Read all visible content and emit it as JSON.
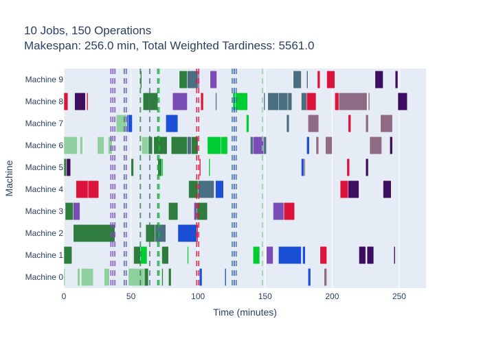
{
  "chart_data": {
    "type": "gantt",
    "title": "10 Jobs, 150 Operations",
    "subtitle": "Makespan: 256.0 min, Total Weighted Tardiness: 5561.0",
    "xlabel": "Time (minutes)",
    "ylabel": "Machine",
    "xlim": [
      0,
      270
    ],
    "xticks": [
      "0",
      "50",
      "100",
      "150",
      "200",
      "250"
    ],
    "xtick_values": [
      0,
      50,
      100,
      150,
      200,
      250
    ],
    "categories": [
      "Machine 0",
      "Machine 1",
      "Machine 2",
      "Machine 3",
      "Machine 4",
      "Machine 5",
      "Machine 6",
      "Machine 7",
      "Machine 8",
      "Machine 9"
    ],
    "grid": true,
    "colors": {
      "plot_bg": "#e5ecf6",
      "job_dark_green": "#2e7d3e",
      "job_light_green": "#8fd19e",
      "job_bright_green": "#00cc33",
      "job_blue": "#1a4fd6",
      "job_slate": "#4a6f82",
      "job_purple": "#7a4cb5",
      "job_dark_purple": "#3d0e5f",
      "job_red": "#dc143c",
      "job_mauve": "#8e6a85"
    },
    "tasks": [
      {
        "machine": 0,
        "start": 0,
        "end": 1,
        "color": "#8fd19e"
      },
      {
        "machine": 0,
        "start": 10,
        "end": 12,
        "color": "#8fd19e"
      },
      {
        "machine": 0,
        "start": 13,
        "end": 22,
        "color": "#8fd19e"
      },
      {
        "machine": 0,
        "start": 30,
        "end": 34,
        "color": "#8fd19e"
      },
      {
        "machine": 0,
        "start": 48,
        "end": 60,
        "color": "#8fd19e"
      },
      {
        "machine": 0,
        "start": 60,
        "end": 63,
        "color": "#2e7d3e"
      },
      {
        "machine": 0,
        "start": 73,
        "end": 74,
        "color": "#2e7d3e"
      },
      {
        "machine": 0,
        "start": 78,
        "end": 80,
        "color": "#2e7d3e"
      },
      {
        "machine": 0,
        "start": 101,
        "end": 103,
        "color": "#1a4fd6"
      },
      {
        "machine": 0,
        "start": 120,
        "end": 121,
        "color": "#1a4fd6"
      },
      {
        "machine": 0,
        "start": 182,
        "end": 184,
        "color": "#1a4fd6"
      },
      {
        "machine": 0,
        "start": 194,
        "end": 196,
        "color": "#8e6a85"
      },
      {
        "machine": 1,
        "start": 0,
        "end": 6,
        "color": "#2e7d3e"
      },
      {
        "machine": 1,
        "start": 52,
        "end": 57,
        "color": "#2e7d3e"
      },
      {
        "machine": 1,
        "start": 57,
        "end": 62,
        "color": "#00cc33"
      },
      {
        "machine": 1,
        "start": 73,
        "end": 78,
        "color": "#2e7d3e"
      },
      {
        "machine": 1,
        "start": 92,
        "end": 93,
        "color": "#00cc33"
      },
      {
        "machine": 1,
        "start": 141,
        "end": 146,
        "color": "#00cc33"
      },
      {
        "machine": 1,
        "start": 151,
        "end": 156,
        "color": "#7a4cb5"
      },
      {
        "machine": 1,
        "start": 160,
        "end": 177,
        "color": "#1a4fd6"
      },
      {
        "machine": 1,
        "start": 178,
        "end": 180,
        "color": "#1a4fd6"
      },
      {
        "machine": 1,
        "start": 191,
        "end": 196,
        "color": "#dc143c"
      },
      {
        "machine": 1,
        "start": 220,
        "end": 225,
        "color": "#3d0e5f"
      },
      {
        "machine": 1,
        "start": 226,
        "end": 231,
        "color": "#3d0e5f"
      },
      {
        "machine": 1,
        "start": 246,
        "end": 247,
        "color": "#3d0e5f"
      },
      {
        "machine": 2,
        "start": 7,
        "end": 38,
        "color": "#2e7d3e"
      },
      {
        "machine": 2,
        "start": 61,
        "end": 68,
        "color": "#2e7d3e"
      },
      {
        "machine": 2,
        "start": 68,
        "end": 76,
        "color": "#4a6f82"
      },
      {
        "machine": 2,
        "start": 85,
        "end": 99,
        "color": "#1a4fd6"
      },
      {
        "machine": 2,
        "start": 99,
        "end": 100,
        "color": "#dc143c"
      },
      {
        "machine": 3,
        "start": 1,
        "end": 7,
        "color": "#2e7d3e"
      },
      {
        "machine": 3,
        "start": 7,
        "end": 12,
        "color": "#7a4cb5"
      },
      {
        "machine": 3,
        "start": 78,
        "end": 85,
        "color": "#2e7d3e"
      },
      {
        "machine": 3,
        "start": 97,
        "end": 99,
        "color": "#7a4cb5"
      },
      {
        "machine": 3,
        "start": 99,
        "end": 107,
        "color": "#2e7d3e"
      },
      {
        "machine": 3,
        "start": 156,
        "end": 164,
        "color": "#7a4cb5"
      },
      {
        "machine": 3,
        "start": 164,
        "end": 172,
        "color": "#dc143c"
      },
      {
        "machine": 4,
        "start": 9,
        "end": 18,
        "color": "#dc143c"
      },
      {
        "machine": 4,
        "start": 18,
        "end": 26,
        "color": "#dc143c"
      },
      {
        "machine": 4,
        "start": 93,
        "end": 100,
        "color": "#2e7d3e"
      },
      {
        "machine": 4,
        "start": 100,
        "end": 112,
        "color": "#4a6f82"
      },
      {
        "machine": 4,
        "start": 113,
        "end": 119,
        "color": "#1a4fd6"
      },
      {
        "machine": 4,
        "start": 206,
        "end": 212,
        "color": "#dc143c"
      },
      {
        "machine": 4,
        "start": 212,
        "end": 220,
        "color": "#3d0e5f"
      },
      {
        "machine": 4,
        "start": 238,
        "end": 244,
        "color": "#3d0e5f"
      },
      {
        "machine": 5,
        "start": 0,
        "end": 2,
        "color": "#2e7d3e"
      },
      {
        "machine": 5,
        "start": 2,
        "end": 5,
        "color": "#3d0e5f"
      },
      {
        "machine": 5,
        "start": 50,
        "end": 52,
        "color": "#2e7d3e"
      },
      {
        "machine": 5,
        "start": 70,
        "end": 73,
        "color": "#2e7d3e"
      },
      {
        "machine": 5,
        "start": 73,
        "end": 74,
        "color": "#00cc33"
      },
      {
        "machine": 5,
        "start": 101,
        "end": 102,
        "color": "#dc143c"
      },
      {
        "machine": 5,
        "start": 108,
        "end": 109,
        "color": "#00cc33"
      },
      {
        "machine": 5,
        "start": 177,
        "end": 179,
        "color": "#1a4fd6"
      },
      {
        "machine": 5,
        "start": 179,
        "end": 180,
        "color": "#8e6a85"
      },
      {
        "machine": 5,
        "start": 211,
        "end": 213,
        "color": "#dc143c"
      },
      {
        "machine": 5,
        "start": 225,
        "end": 227,
        "color": "#3d0e5f"
      },
      {
        "machine": 6,
        "start": 0,
        "end": 10,
        "color": "#8fd19e"
      },
      {
        "machine": 6,
        "start": 12,
        "end": 14,
        "color": "#8fd19e"
      },
      {
        "machine": 6,
        "start": 25,
        "end": 30,
        "color": "#8fd19e"
      },
      {
        "machine": 6,
        "start": 33,
        "end": 36,
        "color": "#8fd19e"
      },
      {
        "machine": 6,
        "start": 58,
        "end": 63,
        "color": "#8fd19e"
      },
      {
        "machine": 6,
        "start": 63,
        "end": 66,
        "color": "#2e7d3e"
      },
      {
        "machine": 6,
        "start": 67,
        "end": 77,
        "color": "#2e7d3e"
      },
      {
        "machine": 6,
        "start": 80,
        "end": 92,
        "color": "#2e7d3e"
      },
      {
        "machine": 6,
        "start": 92,
        "end": 95,
        "color": "#4a6f82"
      },
      {
        "machine": 6,
        "start": 95,
        "end": 100,
        "color": "#2e7d3e"
      },
      {
        "machine": 6,
        "start": 107,
        "end": 117,
        "color": "#00cc33"
      },
      {
        "machine": 6,
        "start": 117,
        "end": 122,
        "color": "#00cc33"
      },
      {
        "machine": 6,
        "start": 139,
        "end": 141,
        "color": "#4a6f82"
      },
      {
        "machine": 6,
        "start": 141,
        "end": 149,
        "color": "#7a4cb5"
      },
      {
        "machine": 6,
        "start": 149,
        "end": 151,
        "color": "#4a6f82"
      },
      {
        "machine": 6,
        "start": 181,
        "end": 183,
        "color": "#1a4fd6"
      },
      {
        "machine": 6,
        "start": 188,
        "end": 190,
        "color": "#8e6a85"
      },
      {
        "machine": 6,
        "start": 195,
        "end": 200,
        "color": "#8e6a85"
      },
      {
        "machine": 6,
        "start": 228,
        "end": 237,
        "color": "#8e6a85"
      },
      {
        "machine": 6,
        "start": 243,
        "end": 245,
        "color": "#3d0e5f"
      },
      {
        "machine": 7,
        "start": 39,
        "end": 47,
        "color": "#8fd19e"
      },
      {
        "machine": 7,
        "start": 47,
        "end": 48,
        "color": "#1a4fd6"
      },
      {
        "machine": 7,
        "start": 48,
        "end": 51,
        "color": "#1a4fd6"
      },
      {
        "machine": 7,
        "start": 76,
        "end": 85,
        "color": "#1a4fd6"
      },
      {
        "machine": 7,
        "start": 136,
        "end": 138,
        "color": "#00cc33"
      },
      {
        "machine": 7,
        "start": 166,
        "end": 168,
        "color": "#4a6f82"
      },
      {
        "machine": 7,
        "start": 182,
        "end": 190,
        "color": "#8e6a85"
      },
      {
        "machine": 7,
        "start": 212,
        "end": 214,
        "color": "#dc143c"
      },
      {
        "machine": 7,
        "start": 225,
        "end": 227,
        "color": "#8e6a85"
      },
      {
        "machine": 7,
        "start": 236,
        "end": 245,
        "color": "#8e6a85"
      },
      {
        "machine": 8,
        "start": 0,
        "end": 3,
        "color": "#dc143c"
      },
      {
        "machine": 8,
        "start": 8,
        "end": 16,
        "color": "#3d0e5f"
      },
      {
        "machine": 8,
        "start": 17,
        "end": 18,
        "color": "#dc143c"
      },
      {
        "machine": 8,
        "start": 59,
        "end": 70,
        "color": "#2e7d3e"
      },
      {
        "machine": 8,
        "start": 81,
        "end": 92,
        "color": "#7a4cb5"
      },
      {
        "machine": 8,
        "start": 102,
        "end": 104,
        "color": "#dc143c"
      },
      {
        "machine": 8,
        "start": 113,
        "end": 114,
        "color": "#4a6f82"
      },
      {
        "machine": 8,
        "start": 126,
        "end": 128,
        "color": "#00cc33"
      },
      {
        "machine": 8,
        "start": 128,
        "end": 137,
        "color": "#00cc33"
      },
      {
        "machine": 8,
        "start": 149,
        "end": 150,
        "color": "#4a6f82"
      },
      {
        "machine": 8,
        "start": 152,
        "end": 160,
        "color": "#4a6f82"
      },
      {
        "machine": 8,
        "start": 160,
        "end": 167,
        "color": "#4a6f82"
      },
      {
        "machine": 8,
        "start": 167,
        "end": 170,
        "color": "#4a6f82"
      },
      {
        "machine": 8,
        "start": 177,
        "end": 181,
        "color": "#4a6f82"
      },
      {
        "machine": 8,
        "start": 181,
        "end": 188,
        "color": "#dc143c"
      },
      {
        "machine": 8,
        "start": 202,
        "end": 205,
        "color": "#dc143c"
      },
      {
        "machine": 8,
        "start": 205,
        "end": 226,
        "color": "#8e6a85"
      },
      {
        "machine": 8,
        "start": 227,
        "end": 228,
        "color": "#8e6a85"
      },
      {
        "machine": 8,
        "start": 249,
        "end": 256,
        "color": "#3d0e5f"
      },
      {
        "machine": 9,
        "start": 57,
        "end": 58,
        "color": "#2e7d3e"
      },
      {
        "machine": 9,
        "start": 86,
        "end": 92,
        "color": "#2e7d3e"
      },
      {
        "machine": 9,
        "start": 92,
        "end": 100,
        "color": "#4a6f82"
      },
      {
        "machine": 9,
        "start": 100,
        "end": 101,
        "color": "#7a4cb5"
      },
      {
        "machine": 9,
        "start": 109,
        "end": 114,
        "color": "#7a4cb5"
      },
      {
        "machine": 9,
        "start": 171,
        "end": 177,
        "color": "#4a6f82"
      },
      {
        "machine": 9,
        "start": 181,
        "end": 182,
        "color": "#4a6f82"
      },
      {
        "machine": 9,
        "start": 189,
        "end": 191,
        "color": "#dc143c"
      },
      {
        "machine": 9,
        "start": 196,
        "end": 202,
        "color": "#dc143c"
      },
      {
        "machine": 9,
        "start": 232,
        "end": 238,
        "color": "#3d0e5f"
      },
      {
        "machine": 9,
        "start": 247,
        "end": 249,
        "color": "#3d0e5f"
      }
    ],
    "vlines": [
      {
        "x": 35,
        "color": "#7a4cb5"
      },
      {
        "x": 36.5,
        "color": "#7a4cb5"
      },
      {
        "x": 38,
        "color": "#7a4cb5"
      },
      {
        "x": 45,
        "color": "#4a6f82"
      },
      {
        "x": 46.5,
        "color": "#7a4cb5"
      },
      {
        "x": 57,
        "color": "#2e7d3e"
      },
      {
        "x": 64,
        "color": "#4a6f82"
      },
      {
        "x": 70,
        "color": "#2e7d3e"
      },
      {
        "x": 71,
        "color": "#00cc33"
      },
      {
        "x": 99,
        "color": "#dc143c"
      },
      {
        "x": 100.5,
        "color": "#dc143c"
      },
      {
        "x": 125.5,
        "color": "#4a6f82"
      },
      {
        "x": 127,
        "color": "#1a4fd6"
      },
      {
        "x": 128.5,
        "color": "#4a6f82"
      },
      {
        "x": 148,
        "color": "#8fd19e"
      }
    ]
  }
}
